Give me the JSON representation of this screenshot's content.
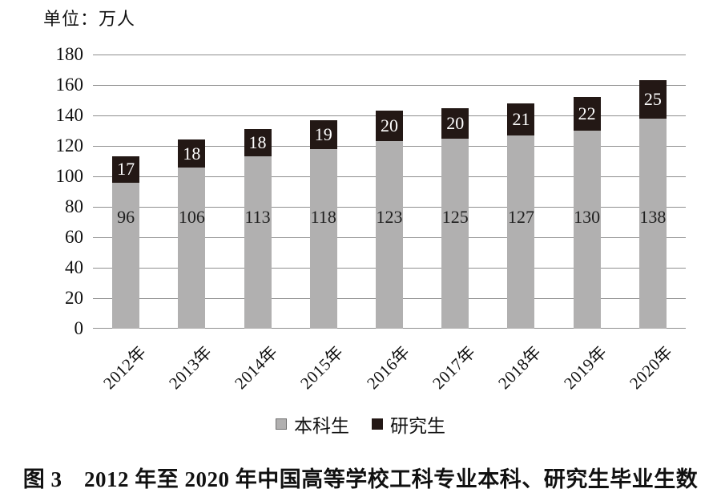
{
  "chart_data": {
    "type": "bar",
    "stacked": true,
    "unit_label": "单位：万人",
    "categories": [
      "2012年",
      "2013年",
      "2014年",
      "2015年",
      "2016年",
      "2017年",
      "2018年",
      "2019年",
      "2020年"
    ],
    "series": [
      {
        "name": "本科生",
        "color": "#b1b0b0",
        "swatch_border": "#6f6f6f",
        "label_color": "#1f1f1f",
        "values": [
          96,
          106,
          113,
          118,
          123,
          125,
          127,
          130,
          138
        ]
      },
      {
        "name": "研究生",
        "color": "#231815",
        "swatch_border": "#231815",
        "label_color": "#ffffff",
        "values": [
          17,
          18,
          18,
          19,
          20,
          20,
          21,
          22,
          25
        ]
      }
    ],
    "ylim": [
      0,
      180
    ],
    "ytick_step": 20,
    "grid": true,
    "grid_color": "#8f8f8f",
    "legend_position": "bottom",
    "caption": "图 3　2012 年至 2020 年中国高等学校工科专业本科、研究生毕业生数"
  }
}
